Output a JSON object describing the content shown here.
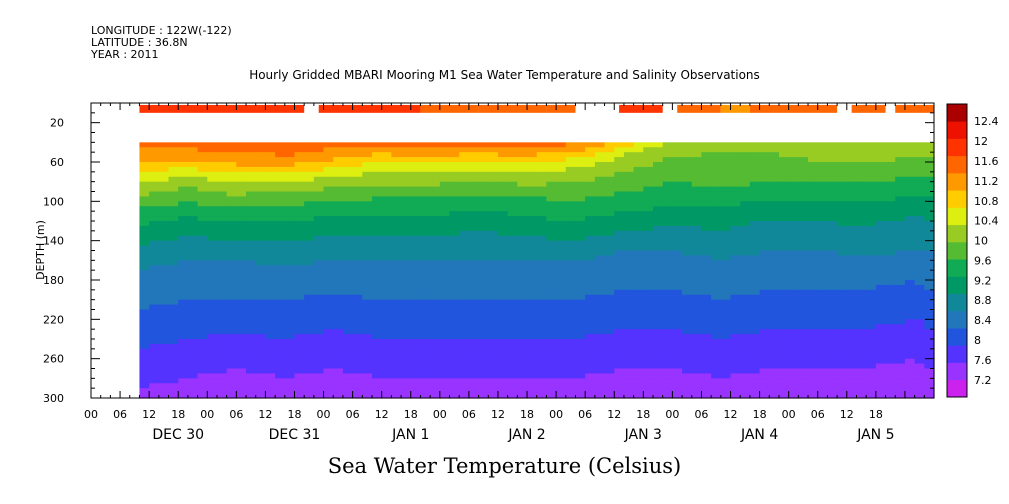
{
  "header": {
    "longitude": "LONGITUDE : 122W(-122)",
    "latitude": "LATITUDE : 36.8N",
    "year": "YEAR : 2011"
  },
  "chart_data": {
    "type": "heatmap",
    "title": "Hourly Gridded MBARI Mooring M1 Sea Water Temperature and Salinity Observations",
    "xlabel": "Sea Water Temperature (Celsius)",
    "ylabel": "DEPTH (m)",
    "x_range_hours_since_dec30_00": [
      -12,
      162
    ],
    "y_range_depth_m": [
      0,
      300
    ],
    "y_ticks": [
      20,
      60,
      100,
      140,
      180,
      220,
      260,
      300
    ],
    "x_hour_ticks": [
      "00",
      "06",
      "12",
      "18",
      "00",
      "06",
      "12",
      "18",
      "00",
      "06",
      "12",
      "18",
      "00",
      "06",
      "12",
      "18",
      "00",
      "06",
      "12",
      "18",
      "00",
      "06",
      "12",
      "18",
      "00",
      "06",
      "12",
      "18"
    ],
    "x_day_labels": [
      "DEC 30",
      "DEC 31",
      "JAN  1",
      "JAN  2",
      "JAN  3",
      "JAN  4",
      "JAN  5"
    ],
    "colorbar": {
      "levels": [
        7.2,
        7.6,
        8,
        8.4,
        8.8,
        9.2,
        9.6,
        10,
        10.4,
        10.8,
        11.2,
        11.6,
        12,
        12.4
      ],
      "labels": [
        "12.4",
        "12",
        "11.6",
        "11.2",
        "10.8",
        "10.4",
        "10",
        "9.6",
        "9.2",
        "8.8",
        "8.4",
        "8",
        "7.6",
        "7.2"
      ],
      "colors": [
        "#cc22ee",
        "#9933ff",
        "#5533ff",
        "#2255dd",
        "#2277bb",
        "#11889a",
        "#009966",
        "#11aa55",
        "#55bb33",
        "#99cc22",
        "#ddee11",
        "#ffcc00",
        "#ff9900",
        "#ff6600",
        "#ff3300",
        "#ee1100",
        "#aa0000"
      ]
    },
    "data_start_hour": -2,
    "data_end_hour": 162,
    "surface_band": {
      "depth_range_m": [
        2,
        10
      ],
      "segments": [
        {
          "from": -2,
          "to": 32,
          "value": 12.6
        },
        {
          "from": 35,
          "to": 56,
          "value": 12.5
        },
        {
          "from": 56,
          "to": 68,
          "value": 12.2
        },
        {
          "from": 68,
          "to": 82,
          "value": 12.1
        },
        {
          "from": 82,
          "to": 88,
          "value": 12.2
        },
        {
          "from": 97,
          "to": 106,
          "value": 12.6
        },
        {
          "from": 109,
          "to": 118,
          "value": 12.1
        },
        {
          "from": 118,
          "to": 124,
          "value": 11.9
        },
        {
          "from": 124,
          "to": 142,
          "value": 12.1
        },
        {
          "from": 145,
          "to": 152,
          "value": 12.3
        },
        {
          "from": 154,
          "to": 162,
          "value": 12.1
        }
      ]
    },
    "profile_times_h": [
      -2,
      8,
      18,
      28,
      38,
      48,
      58,
      68,
      78,
      88,
      98,
      108,
      118,
      128,
      138,
      148,
      158,
      162
    ],
    "profile_depths_m": [
      40,
      50,
      60,
      70,
      80,
      90,
      100,
      110,
      120,
      130,
      140,
      150,
      160,
      170,
      180,
      190,
      200,
      210,
      220,
      230,
      240,
      250,
      260,
      270,
      280,
      290,
      300
    ],
    "profiles": [
      [
        12.1,
        11.9,
        11.6,
        11.2,
        10.8,
        10.5,
        10.2,
        9.9,
        9.7,
        9.5,
        9.3,
        9.1,
        8.9,
        8.8,
        8.7,
        8.6,
        8.5,
        8.4,
        8.3,
        8.2,
        8.1,
        8.0,
        7.9,
        7.8,
        7.7,
        7.6,
        7.5
      ],
      [
        12.2,
        11.9,
        11.5,
        11.0,
        10.6,
        10.3,
        10.0,
        9.8,
        9.5,
        9.3,
        9.1,
        8.9,
        8.8,
        8.7,
        8.6,
        8.5,
        8.4,
        8.3,
        8.2,
        8.1,
        8.0,
        7.9,
        7.8,
        7.7,
        7.6,
        7.5,
        7.4
      ],
      [
        12.3,
        12.0,
        11.7,
        11.3,
        10.9,
        10.5,
        10.2,
        9.9,
        9.6,
        9.4,
        9.2,
        9.0,
        8.8,
        8.7,
        8.6,
        8.5,
        8.4,
        8.3,
        8.2,
        8.1,
        7.9,
        7.8,
        7.7,
        7.6,
        7.5,
        7.4,
        7.3
      ],
      [
        12.3,
        12.1,
        11.8,
        11.3,
        10.8,
        10.4,
        10.1,
        9.8,
        9.6,
        9.4,
        9.2,
        9.0,
        8.9,
        8.7,
        8.6,
        8.5,
        8.4,
        8.3,
        8.2,
        8.1,
        8.0,
        7.9,
        7.8,
        7.7,
        7.6,
        7.5,
        7.4
      ],
      [
        12.2,
        11.9,
        11.5,
        11.0,
        10.6,
        10.3,
        10.0,
        9.8,
        9.5,
        9.3,
        9.1,
        8.9,
        8.8,
        8.7,
        8.6,
        8.5,
        8.3,
        8.2,
        8.1,
        8.0,
        7.9,
        7.8,
        7.7,
        7.6,
        7.5,
        7.4,
        7.3
      ],
      [
        12.1,
        11.7,
        11.2,
        10.8,
        10.5,
        10.2,
        9.9,
        9.7,
        9.5,
        9.3,
        9.1,
        8.9,
        8.8,
        8.7,
        8.6,
        8.5,
        8.4,
        8.3,
        8.2,
        8.1,
        8.0,
        7.9,
        7.8,
        7.7,
        7.6,
        7.5,
        7.4
      ],
      [
        12.2,
        11.8,
        11.3,
        10.9,
        10.5,
        10.2,
        9.9,
        9.7,
        9.5,
        9.3,
        9.1,
        8.9,
        8.8,
        8.7,
        8.6,
        8.5,
        8.4,
        8.3,
        8.2,
        8.1,
        8.0,
        7.9,
        7.8,
        7.7,
        7.6,
        7.5,
        7.4
      ],
      [
        12.1,
        11.7,
        11.1,
        10.7,
        10.4,
        10.1,
        9.8,
        9.6,
        9.4,
        9.2,
        9.0,
        8.9,
        8.8,
        8.7,
        8.6,
        8.5,
        8.4,
        8.3,
        8.2,
        8.1,
        8.0,
        7.9,
        7.8,
        7.7,
        7.6,
        7.5,
        7.4
      ],
      [
        12.2,
        11.8,
        11.2,
        10.8,
        10.5,
        10.2,
        9.9,
        9.7,
        9.5,
        9.3,
        9.1,
        8.9,
        8.8,
        8.7,
        8.6,
        8.5,
        8.4,
        8.3,
        8.2,
        8.1,
        8.0,
        7.9,
        7.8,
        7.7,
        7.6,
        7.5,
        7.4
      ],
      [
        12.1,
        11.6,
        11.0,
        10.7,
        10.4,
        10.2,
        10.0,
        9.8,
        9.6,
        9.4,
        9.2,
        9.0,
        8.8,
        8.7,
        8.6,
        8.5,
        8.4,
        8.3,
        8.2,
        8.1,
        8.0,
        7.9,
        7.8,
        7.7,
        7.6,
        7.5,
        7.4
      ],
      [
        11.4,
        10.9,
        10.6,
        10.4,
        10.2,
        10.0,
        9.8,
        9.6,
        9.4,
        9.2,
        9.0,
        8.8,
        8.7,
        8.6,
        8.5,
        8.4,
        8.3,
        8.2,
        8.1,
        8.0,
        7.9,
        7.8,
        7.7,
        7.6,
        7.5,
        7.4,
        7.4
      ],
      [
        10.7,
        10.5,
        10.3,
        10.2,
        10.0,
        9.9,
        9.7,
        9.5,
        9.3,
        9.1,
        8.9,
        8.8,
        8.7,
        8.6,
        8.5,
        8.4,
        8.3,
        8.2,
        8.1,
        8.0,
        7.9,
        7.8,
        7.7,
        7.6,
        7.5,
        7.4,
        7.3
      ],
      [
        10.5,
        10.4,
        10.3,
        10.2,
        10.1,
        9.9,
        9.7,
        9.5,
        9.3,
        9.2,
        9.0,
        8.9,
        8.8,
        8.7,
        8.6,
        8.5,
        8.4,
        8.3,
        8.2,
        8.1,
        8.0,
        7.9,
        7.8,
        7.7,
        7.6,
        7.5,
        7.4
      ],
      [
        10.5,
        10.4,
        10.3,
        10.2,
        10.0,
        9.8,
        9.6,
        9.4,
        9.2,
        9.0,
        8.9,
        8.8,
        8.7,
        8.6,
        8.5,
        8.4,
        8.3,
        8.2,
        8.1,
        8.0,
        7.9,
        7.8,
        7.7,
        7.6,
        7.5,
        7.4,
        7.3
      ],
      [
        10.7,
        10.5,
        10.4,
        10.2,
        10.0,
        9.8,
        9.6,
        9.4,
        9.2,
        9.1,
        8.9,
        8.8,
        8.7,
        8.6,
        8.5,
        8.4,
        8.3,
        8.2,
        8.1,
        8.0,
        7.9,
        7.8,
        7.7,
        7.6,
        7.5,
        7.4,
        7.3
      ],
      [
        10.8,
        10.6,
        10.4,
        10.2,
        10.0,
        9.8,
        9.6,
        9.4,
        9.3,
        9.1,
        9.0,
        8.9,
        8.7,
        8.6,
        8.5,
        8.4,
        8.3,
        8.2,
        8.1,
        8.0,
        7.9,
        7.8,
        7.7,
        7.6,
        7.5,
        7.5,
        7.4
      ],
      [
        10.7,
        10.5,
        10.3,
        10.1,
        9.9,
        9.7,
        9.5,
        9.3,
        9.1,
        9.0,
        8.9,
        8.8,
        8.6,
        8.5,
        8.4,
        8.3,
        8.2,
        8.1,
        8.0,
        7.9,
        7.8,
        7.7,
        7.6,
        7.5,
        7.4,
        7.3,
        7.3
      ],
      [
        10.7,
        10.5,
        10.3,
        10.1,
        9.9,
        9.7,
        9.5,
        9.4,
        9.2,
        9.0,
        8.9,
        8.8,
        8.7,
        8.6,
        8.5,
        8.4,
        8.3,
        8.2,
        8.1,
        8.0,
        7.9,
        7.8,
        7.7,
        7.6,
        7.5,
        7.4,
        7.4
      ]
    ]
  }
}
